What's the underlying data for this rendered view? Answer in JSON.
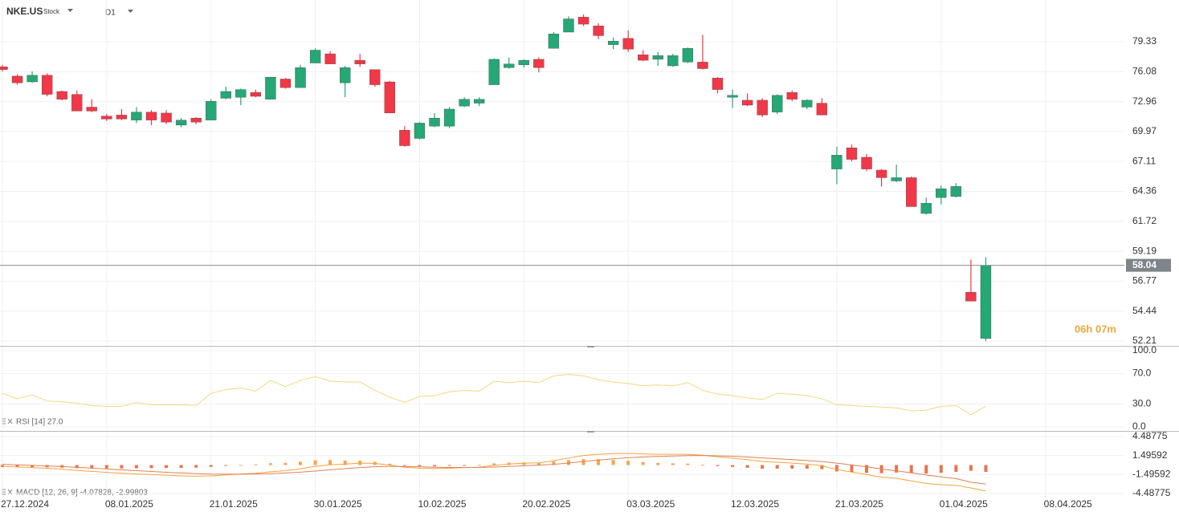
{
  "header": {
    "symbol": "NKE.US",
    "kind": "Stock",
    "timeframe": "D1"
  },
  "chart_data": [
    {
      "type": "candlestick",
      "log_scale": true,
      "grid": true,
      "xlim": [
        -0.16,
        75.3
      ],
      "xticks": [
        {
          "value": 0,
          "label": "27.12.2024"
        },
        {
          "value": 7,
          "label": "08.01.2025"
        },
        {
          "value": 14,
          "label": "21.01.2025"
        },
        {
          "value": 21,
          "label": "30.01.2025"
        },
        {
          "value": 28,
          "label": "10.02.2025"
        },
        {
          "value": 35,
          "label": "20.02.2025"
        },
        {
          "value": 42,
          "label": "03.03.2025"
        },
        {
          "value": 49,
          "label": "12.03.2025"
        },
        {
          "value": 56,
          "label": "21.03.2025"
        },
        {
          "value": 63,
          "label": "01.04.2025"
        },
        {
          "value": 70,
          "label": "08.04.2025"
        }
      ],
      "ylim": [
        51.86,
        84.09
      ],
      "yticks": [
        79.33,
        76.08,
        72.96,
        69.97,
        67.11,
        64.36,
        61.72,
        59.19,
        56.77,
        54.44,
        52.21
      ],
      "up_color": "#26a776",
      "down_color": "#f03848",
      "open": [
        76.6,
        75.6,
        75.0,
        75.7,
        74.0,
        73.7,
        72.4,
        71.5,
        71.6,
        71.1,
        71.9,
        71.8,
        70.6,
        71.3,
        71.1,
        73.3,
        73.4,
        73.9,
        73.2,
        75.3,
        74.4,
        77.0,
        78.0,
        74.9,
        77.3,
        76.3,
        75.0,
        70.1,
        69.3,
        70.5,
        70.5,
        72.5,
        72.8,
        74.7,
        76.5,
        76.8,
        77.4,
        78.6,
        80.4,
        82.1,
        81.1,
        79.0,
        79.7,
        77.9,
        77.4,
        76.7,
        77.1,
        77.1,
        75.4,
        73.4,
        73.1,
        73.1,
        71.9,
        73.9,
        72.4,
        72.8,
        66.4,
        68.4,
        67.5,
        66.3,
        65.3,
        65.6,
        62.4,
        63.8,
        63.9,
        55.9,
        52.4
      ],
      "high": [
        76.8,
        75.8,
        76.1,
        75.9,
        74.1,
        74.1,
        73.2,
        71.7,
        72.2,
        72.4,
        72.1,
        72.1,
        71.3,
        71.4,
        73.2,
        74.5,
        74.3,
        74.2,
        75.5,
        75.4,
        76.8,
        78.6,
        78.3,
        76.7,
        78.0,
        76.3,
        75.1,
        70.5,
        70.9,
        71.8,
        72.4,
        73.4,
        73.4,
        77.5,
        77.6,
        77.4,
        77.6,
        80.4,
        82.2,
        82.4,
        81.4,
        79.8,
        80.6,
        78.4,
        78.2,
        78.0,
        78.7,
        80.1,
        75.5,
        74.2,
        73.8,
        73.3,
        73.7,
        74.1,
        73.2,
        73.3,
        68.5,
        68.7,
        67.8,
        66.4,
        66.8,
        65.7,
        63.8,
        64.9,
        65.1,
        58.5,
        58.7
      ],
      "low": [
        76.1,
        74.7,
        74.9,
        73.5,
        73.1,
        72.0,
        71.9,
        71.0,
        71.1,
        70.8,
        70.6,
        70.7,
        70.4,
        70.7,
        71.1,
        73.2,
        72.6,
        73.4,
        73.2,
        74.3,
        74.4,
        77.0,
        76.9,
        73.4,
        76.6,
        74.5,
        71.8,
        68.5,
        69.2,
        70.4,
        70.3,
        72.4,
        72.5,
        74.7,
        76.4,
        76.5,
        76.0,
        78.6,
        80.4,
        81.1,
        79.6,
        78.5,
        78.2,
        77.2,
        76.7,
        76.6,
        77.0,
        76.3,
        73.8,
        72.3,
        72.5,
        71.4,
        71.7,
        73.0,
        72.2,
        71.6,
        65.0,
        67.1,
        66.2,
        64.8,
        65.2,
        63.0,
        62.3,
        63.2,
        63.8,
        55.2,
        52.2
      ],
      "close": [
        76.3,
        74.9,
        75.7,
        73.7,
        73.2,
        72.0,
        72.0,
        71.2,
        71.2,
        71.9,
        71.1,
        70.9,
        71.1,
        70.9,
        73.0,
        74.0,
        74.2,
        73.5,
        75.5,
        74.4,
        76.5,
        78.4,
        76.9,
        76.5,
        76.9,
        74.7,
        71.8,
        68.6,
        70.8,
        71.3,
        72.2,
        73.2,
        73.2,
        77.4,
        76.9,
        77.3,
        76.5,
        80.2,
        81.9,
        81.3,
        80.0,
        79.4,
        78.5,
        77.3,
        77.8,
        77.8,
        78.6,
        76.4,
        74.2,
        73.6,
        72.6,
        71.6,
        73.6,
        73.2,
        73.1,
        71.6,
        67.7,
        67.3,
        66.4,
        65.6,
        65.6,
        63.0,
        63.3,
        64.6,
        64.8,
        55.2,
        58.04
      ],
      "last_price": 58.04,
      "countdown": "06h 07m"
    },
    {
      "type": "line",
      "title": "RSI [14] 27.0",
      "grid": true,
      "ylim": [
        -5.3,
        105.3
      ],
      "yticks": [
        {
          "value": 100,
          "label": "100.0"
        },
        {
          "value": 70,
          "label": "70.0"
        },
        {
          "value": 30,
          "label": "30.0"
        },
        {
          "value": 0,
          "label": "0.0"
        }
      ],
      "series": [
        {
          "color": "#f5d77e",
          "values": [
            44,
            37,
            42,
            34,
            33,
            31,
            28,
            27,
            27,
            32,
            29,
            29,
            29,
            28,
            44,
            49,
            51,
            47,
            61,
            53,
            61,
            66,
            60,
            59,
            59,
            48,
            39,
            32,
            40,
            41,
            46,
            48,
            47,
            60,
            58,
            60,
            58,
            67,
            69,
            67,
            62,
            59,
            57,
            54,
            55,
            54,
            58,
            48,
            43,
            41,
            38,
            36,
            44,
            43,
            41,
            37,
            29,
            28,
            27,
            26,
            25,
            21,
            22,
            27,
            28,
            16,
            27
          ]
        }
      ]
    },
    {
      "type": "macd",
      "title": "MACD [12, 26, 9] -4.07828, -2.99803",
      "grid": true,
      "ylim": [
        -5.12,
        5.25
      ],
      "yticks": [
        4.48775,
        1.49592,
        -1.49592,
        -4.48775
      ],
      "histogram": {
        "up_color": "#f5a54a",
        "down_color": "#e8744f",
        "values": [
          -0.32,
          -0.34,
          -0.35,
          -0.36,
          -0.41,
          -0.49,
          -0.51,
          -0.53,
          -0.54,
          -0.51,
          -0.49,
          -0.47,
          -0.46,
          -0.41,
          -0.28,
          -0.11,
          0.03,
          0.11,
          0.29,
          0.35,
          0.52,
          0.74,
          0.79,
          0.71,
          0.69,
          0.51,
          0.21,
          -0.11,
          -0.21,
          -0.21,
          -0.13,
          -0.02,
          0.02,
          0.26,
          0.37,
          0.41,
          0.37,
          0.58,
          0.78,
          0.94,
          0.92,
          0.81,
          0.69,
          0.47,
          0.34,
          0.27,
          0.22,
          0.05,
          -0.16,
          -0.29,
          -0.43,
          -0.58,
          -0.55,
          -0.56,
          -0.57,
          -0.65,
          -1.0,
          -1.12,
          -1.22,
          -1.29,
          -1.19,
          -1.28,
          -1.34,
          -1.23,
          -1.07,
          -0.9,
          -1.08
        ]
      },
      "series": [
        {
          "color": "#f5a33a",
          "values": [
            -0.2,
            -0.3,
            -0.4,
            -0.5,
            -0.65,
            -0.85,
            -1.0,
            -1.15,
            -1.3,
            -1.4,
            -1.5,
            -1.6,
            -1.7,
            -1.75,
            -1.7,
            -1.55,
            -1.4,
            -1.3,
            -1.05,
            -0.9,
            -0.6,
            -0.2,
            0.05,
            0.15,
            0.3,
            0.25,
            0.0,
            -0.35,
            -0.5,
            -0.55,
            -0.5,
            -0.4,
            -0.35,
            -0.05,
            0.15,
            0.3,
            0.35,
            0.7,
            1.1,
            1.5,
            1.7,
            1.8,
            1.85,
            1.75,
            1.7,
            1.7,
            1.7,
            1.55,
            1.3,
            1.1,
            0.85,
            0.55,
            0.45,
            0.3,
            0.15,
            -0.1,
            -0.7,
            -1.1,
            -1.5,
            -1.9,
            -2.1,
            -2.5,
            -2.9,
            -3.1,
            -3.2,
            -3.6,
            -4.07828
          ]
        },
        {
          "color": "#e0805a",
          "values": [
            0.12,
            0.04,
            -0.05,
            -0.14,
            -0.24,
            -0.36,
            -0.49,
            -0.62,
            -0.76,
            -0.89,
            -1.01,
            -1.13,
            -1.24,
            -1.34,
            -1.42,
            -1.44,
            -1.43,
            -1.41,
            -1.34,
            -1.25,
            -1.12,
            -0.94,
            -0.74,
            -0.56,
            -0.39,
            -0.26,
            -0.21,
            -0.24,
            -0.29,
            -0.34,
            -0.37,
            -0.38,
            -0.37,
            -0.31,
            -0.22,
            -0.11,
            -0.02,
            0.12,
            0.32,
            0.56,
            0.78,
            0.99,
            1.16,
            1.28,
            1.36,
            1.43,
            1.48,
            1.5,
            1.46,
            1.39,
            1.28,
            1.13,
            1.0,
            0.86,
            0.72,
            0.55,
            0.3,
            0.02,
            -0.28,
            -0.61,
            -0.91,
            -1.22,
            -1.56,
            -1.87,
            -2.13,
            -2.7,
            -2.99803
          ]
        }
      ]
    }
  ]
}
